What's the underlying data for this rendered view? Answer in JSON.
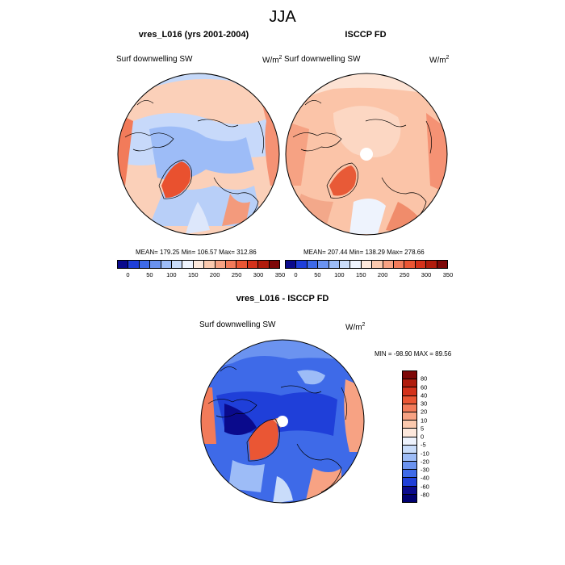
{
  "season": "JJA",
  "maps": [
    {
      "title": "vres_L016 (yrs 2001-2004)",
      "variable": "Surf downwelling SW",
      "units": "W/m",
      "units_sup": "2",
      "stats": "MEAN= 179.25  Min= 106.57  Max= 312.86"
    },
    {
      "title": "ISCCP FD",
      "variable": "Surf downwelling SW",
      "units": "W/m",
      "units_sup": "2",
      "stats": "MEAN= 207.44  Min= 138.29  Max= 278.66"
    },
    {
      "title": "vres_L016 - ISCCP FD",
      "variable": "Surf downwelling SW",
      "units": "W/m",
      "units_sup": "2",
      "stats": "MIN = -98.90 MAX =  89.56"
    }
  ],
  "abs_colorbar": {
    "tick_labels": [
      "0",
      "50",
      "100",
      "150",
      "200",
      "250",
      "300",
      "350"
    ],
    "colors": [
      "#0a0a8c",
      "#1f3fd9",
      "#3e6ae8",
      "#6b93f0",
      "#9dbcf7",
      "#c9dcfa",
      "#eef3fd",
      "#fde8dc",
      "#fbc9ae",
      "#f7a283",
      "#f27b5a",
      "#ea5634",
      "#d4321b",
      "#b01c0d",
      "#7e0808"
    ]
  },
  "diff_colorbar": {
    "tick_labels": [
      "80",
      "60",
      "40",
      "30",
      "20",
      "10",
      "5",
      "0",
      "-5",
      "-10",
      "-20",
      "-30",
      "-40",
      "-60",
      "-80"
    ],
    "colors": [
      "#7e0808",
      "#b01c0d",
      "#d4321b",
      "#ea5634",
      "#f27b5a",
      "#f7a283",
      "#fbc9ae",
      "#fde8dc",
      "#eef3fd",
      "#c9dcfa",
      "#9dbcf7",
      "#6b93f0",
      "#3e6ae8",
      "#1f3fd9",
      "#0a0a8c",
      "#000070"
    ]
  }
}
